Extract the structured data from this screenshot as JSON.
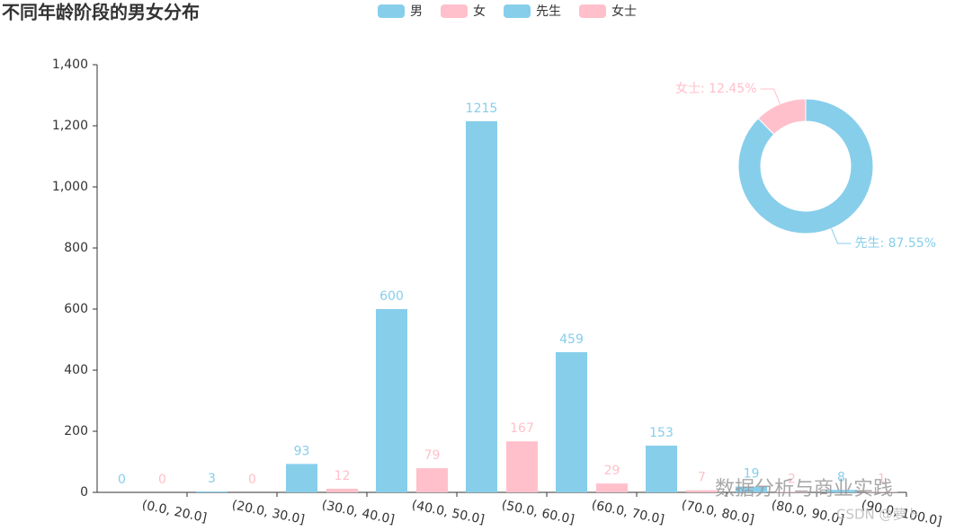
{
  "chart_data": [
    {
      "type": "bar",
      "title": "不同年龄阶段的男女分布",
      "categories": [
        "(0.0, 20.0]",
        "(20.0, 30.0]",
        "(30.0, 40.0]",
        "(40.0, 50.0]",
        "(50.0, 60.0]",
        "(60.0, 70.0]",
        "(70.0, 80.0]",
        "(80.0, 90.0]",
        "(90.0, 100.0]"
      ],
      "series": [
        {
          "name": "男",
          "color": "#87ceeb",
          "values": [
            0,
            3,
            93,
            600,
            1215,
            459,
            153,
            19,
            8
          ]
        },
        {
          "name": "女",
          "color": "#ffc0cb",
          "values": [
            0,
            0,
            12,
            79,
            167,
            29,
            7,
            2,
            1
          ]
        }
      ],
      "ylim": [
        0,
        1400
      ],
      "yticks": [
        0,
        200,
        400,
        600,
        800,
        {
          "value": 1000,
          "label": "1,000"
        },
        {
          "value": 1200,
          "label": "1,200"
        },
        {
          "value": 1400,
          "label": "1,400"
        }
      ]
    },
    {
      "type": "pie",
      "categories": [
        "先生",
        "女士"
      ],
      "values": [
        87.55,
        12.45
      ],
      "value_labels": [
        "先生: 87.55%",
        "女士: 12.45%"
      ],
      "colors": [
        "#87ceeb",
        "#ffc0cb"
      ],
      "donut": true
    }
  ],
  "watermark": [
    "数据分析与商业实践",
    "CSDN @萝卜"
  ]
}
